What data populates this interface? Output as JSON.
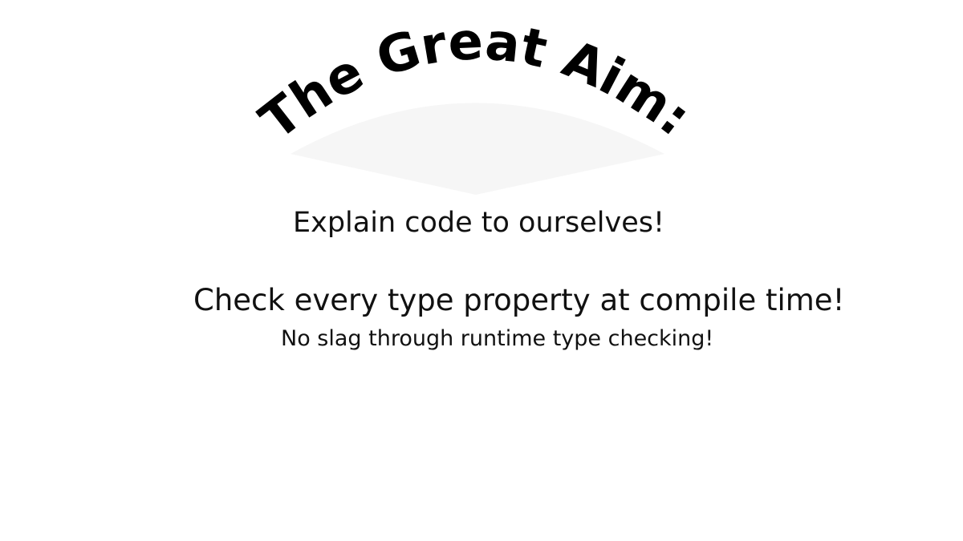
{
  "slide": {
    "title": "The Great Aim:",
    "lines": [
      "Explain code to ourselves!",
      "Check every type property at compile time!",
      "No slag through runtime type checking!"
    ]
  },
  "colors": {
    "background": "#ffffff",
    "text": "#111111",
    "title_shadow": "#f6f6f6"
  }
}
